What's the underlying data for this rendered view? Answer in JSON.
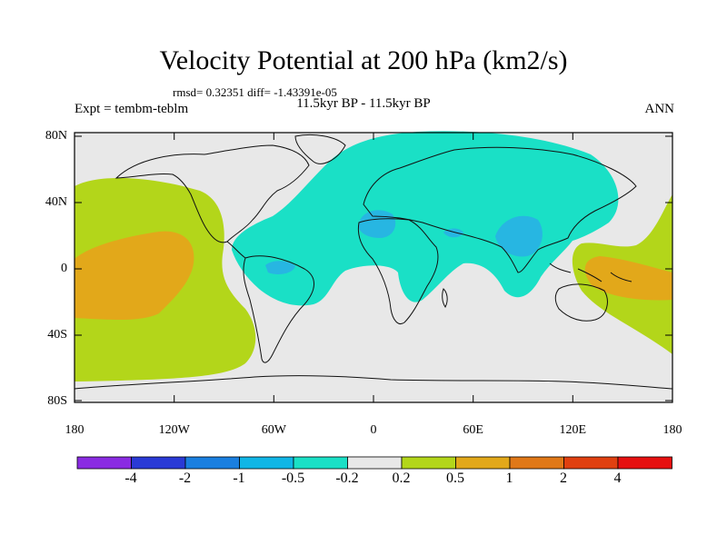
{
  "title": "Velocity Potential at 200 hPa (km2/s)",
  "stats": "rmsd= 0.32351 diff= -1.43391e-05",
  "left_label": "Expt = tembm-teblm",
  "center_label": "11.5kyr BP - 11.5kyr BP",
  "right_label": "ANN",
  "y_ticks": [
    {
      "label": "80N"
    },
    {
      "label": "40N"
    },
    {
      "label": "0"
    },
    {
      "label": "40S"
    },
    {
      "label": "80S"
    }
  ],
  "x_ticks": [
    {
      "label": "180"
    },
    {
      "label": "120W"
    },
    {
      "label": "60W"
    },
    {
      "label": "0"
    },
    {
      "label": "60E"
    },
    {
      "label": "120E"
    },
    {
      "label": "180"
    }
  ],
  "colorbar": {
    "colors": [
      "#8a2be2",
      "#2a3ad6",
      "#1a7fe0",
      "#10b6e6",
      "#1ae0c6",
      "#e8e8e8",
      "#b3d61a",
      "#e2a81a",
      "#e07818",
      "#e04010",
      "#e61010"
    ],
    "labels": [
      "-4",
      "-2",
      "-1",
      "-0.5",
      "-0.2",
      "0.2",
      "0.5",
      "1",
      "2",
      "4"
    ]
  },
  "colors": {
    "negative_weak": "#1ae0c6",
    "negative_mid": "#27b6e2",
    "positive_weak": "#b3d61a",
    "positive_mid": "#e2a81a",
    "positive_strong": "#e07818",
    "neutral": "#e8e8e8"
  }
}
